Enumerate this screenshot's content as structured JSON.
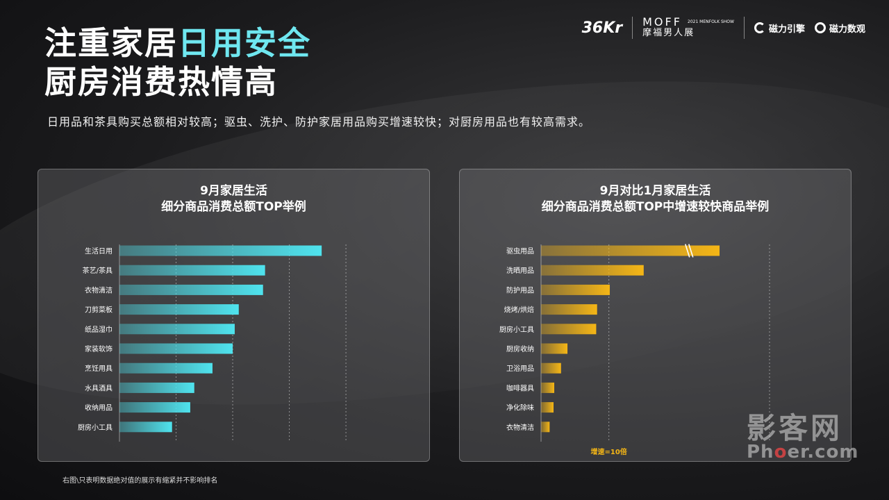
{
  "header": {
    "title_line1_a": "注重家居",
    "title_line1_b": "日用安全",
    "title_line2": "厨房消费热情高",
    "subtitle": "日用品和茶具购买总额相对较高；驱虫、洗护、防护家居用品购买增速较快；对厨房用品也有较高需求。"
  },
  "logos": {
    "kr_main": "36Kr",
    "moff_en": "MOFF",
    "moff_small": "2021 MENFOLK SHOW",
    "moff_cn": "摩福男人展",
    "cili_engine": "磁力引擎",
    "cili_data": "磁力数观"
  },
  "footnote": "右图\\只表明数据绝对值的展示有缩紧并不影响排名",
  "watermark": {
    "cn": "影客网",
    "en_a": "Ph",
    "en_b": "o",
    "en_c": "er.com"
  },
  "colors": {
    "cyan": "#4fe3ee",
    "gold": "#f5b616",
    "accent_title": "#6fe7f0"
  },
  "chart_data": [
    {
      "type": "bar",
      "orientation": "horizontal",
      "title_line1": "9月家居生活",
      "title_line2": "细分商品消费总额TOP举例",
      "categories": [
        "生活日用",
        "茶艺/茶具",
        "衣物清洁",
        "刀剪菜板",
        "纸品湿巾",
        "家装软饰",
        "烹饪用具",
        "水具酒具",
        "收纳用品",
        "厨房小工具"
      ],
      "values": [
        100,
        72,
        71,
        59,
        57,
        56,
        46,
        37,
        35,
        26
      ],
      "xlim": [
        0,
        113
      ],
      "grid_values": [
        28,
        56,
        84,
        112
      ],
      "color": "#4fe3ee"
    },
    {
      "type": "bar",
      "orientation": "horizontal",
      "title_line1": "9月对比1月家居生活",
      "title_line2": "细分商品消费总额TOP中增速较快商品举例",
      "categories": [
        "驱虫用品",
        "洗晒用品",
        "防护用品",
        "烧烤/烘焙",
        "厨房小工具",
        "厨房收纳",
        "卫浴用品",
        "咖啡器具",
        "净化除味",
        "衣物清洁"
      ],
      "values": [
        100,
        57.5,
        38.5,
        31.4,
        30.9,
        14.8,
        11.2,
        7.4,
        7,
        4.8
      ],
      "break_on_first": true,
      "xlim": [
        0,
        128
      ],
      "grid_values": [
        38,
        128
      ],
      "reference_value": 38,
      "reference_label": "增速=10倍",
      "color": "#f5b616"
    }
  ]
}
